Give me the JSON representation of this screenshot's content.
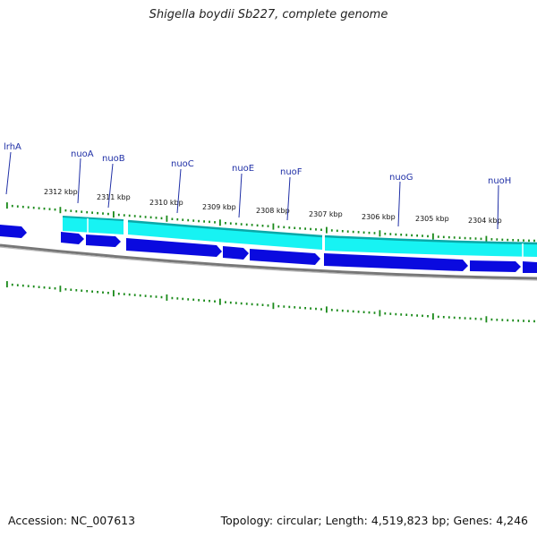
{
  "title": "Shigella boydii Sb227, complete genome",
  "accession": "Accession: NC_007613",
  "topology": "Topology: circular; Length: 4,519,823 bp; Genes: 4,246",
  "colors": {
    "backbone": "#888888",
    "cds": "#0a0adf",
    "cds_light": "#17f3f3",
    "tick": "#1a8a1a",
    "gene_label": "#1f2fa6"
  },
  "kbp_labels": [
    "2312 kbp",
    "2311 kbp",
    "2310 kbp",
    "2309 kbp",
    "2308 kbp",
    "2307 kbp",
    "2306 kbp",
    "2305 kbp",
    "2304 kbp"
  ],
  "genes": [
    "lrhA",
    "nuoA",
    "nuoB",
    "nuoC",
    "nuoE",
    "nuoF",
    "nuoG",
    "nuoH"
  ]
}
